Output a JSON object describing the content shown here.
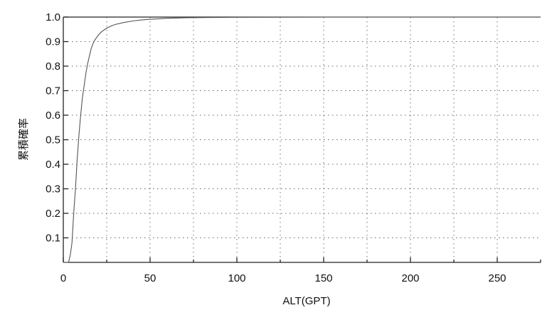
{
  "chart_data": {
    "type": "line",
    "title": "",
    "xlabel": "ALT(GPT)",
    "ylabel": "累積確率",
    "xlim": [
      0,
      275
    ],
    "ylim": [
      0,
      1.0
    ],
    "x_ticks": [
      0,
      50,
      100,
      150,
      200,
      250
    ],
    "x_tick_labels": [
      "0",
      "50",
      "100",
      "150",
      "200",
      "250"
    ],
    "x_minor_ticks": [
      25,
      75,
      125,
      175,
      225,
      275
    ],
    "y_ticks": [
      0.1,
      0.2,
      0.3,
      0.4,
      0.5,
      0.6,
      0.7,
      0.8,
      0.9,
      1.0
    ],
    "y_tick_labels": [
      "0.1",
      "0.2",
      "0.3",
      "0.4",
      "0.5",
      "0.6",
      "0.7",
      "0.8",
      "0.9",
      "1.0"
    ],
    "grid": true,
    "series": [
      {
        "color": "#555555",
        "x": [
          3,
          4,
          5,
          6,
          7,
          8,
          9,
          10,
          11,
          12,
          13,
          14,
          15,
          16,
          17,
          18,
          20,
          22,
          25,
          28,
          30,
          35,
          40,
          45,
          50,
          55,
          60,
          70,
          80,
          100,
          150,
          200,
          250,
          275
        ],
        "y": [
          0.0,
          0.03,
          0.08,
          0.2,
          0.3,
          0.42,
          0.52,
          0.6,
          0.67,
          0.72,
          0.77,
          0.81,
          0.84,
          0.87,
          0.89,
          0.905,
          0.925,
          0.94,
          0.955,
          0.965,
          0.97,
          0.978,
          0.984,
          0.988,
          0.991,
          0.993,
          0.995,
          0.997,
          0.998,
          0.999,
          1.0,
          1.0,
          1.0,
          1.0
        ]
      }
    ]
  }
}
